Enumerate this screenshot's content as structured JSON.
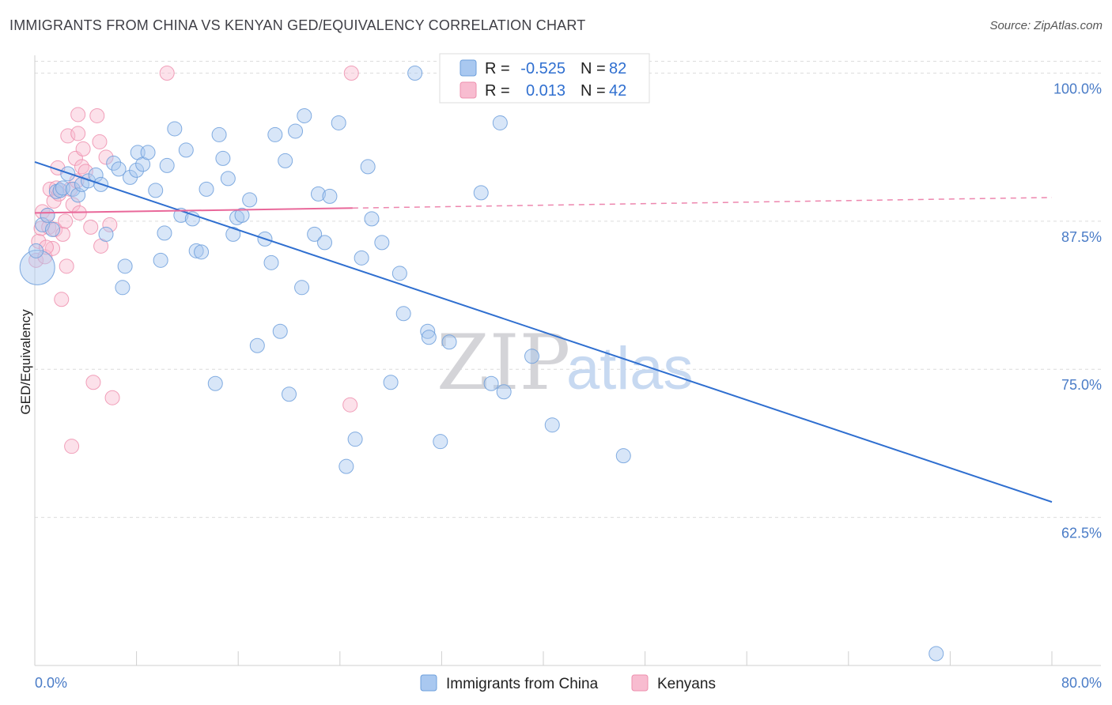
{
  "title": "IMMIGRANTS FROM CHINA VS KENYAN GED/EQUIVALENCY CORRELATION CHART",
  "source": "Source: ZipAtlas.com",
  "colors": {
    "series1_fill": "#a9c8f0",
    "series1_stroke": "#6d9fdc",
    "series1_line": "#2f6fd0",
    "series2_fill": "#f8bcd0",
    "series2_stroke": "#ee8fae",
    "series2_line": "#e9689a",
    "grid": "#dcdcdc",
    "tick_label": "#4a7cc7"
  },
  "legend": {
    "rows": [
      {
        "r_label": "R =",
        "r_value": "-0.525",
        "n_label": "N =",
        "n_value": "82"
      },
      {
        "r_label": "R =",
        "r_value": "0.013",
        "n_label": "N =",
        "n_value": "42"
      }
    ]
  },
  "watermark": {
    "part1": "ZIP",
    "part2": "atlas"
  },
  "chart_data": {
    "type": "scatter",
    "ylabel": "GED/Equivalency",
    "xlabel": "",
    "xlim": [
      0,
      80
    ],
    "ylim": [
      50,
      101.5
    ],
    "x_tick_labels": [
      "0.0%",
      "80.0%"
    ],
    "y_ticks": [
      62.5,
      75.0,
      87.5,
      100.0
    ],
    "y_tick_labels": [
      "62.5%",
      "75.0%",
      "87.5%",
      "100.0%"
    ],
    "grid": true,
    "legend_position": "top-center",
    "series": [
      {
        "name": "Immigrants from China",
        "trend": {
          "x": [
            0,
            80
          ],
          "y": [
            92.5,
            63.8
          ]
        },
        "points": [
          [
            0.2,
            83.6
          ],
          [
            0.6,
            87.2
          ],
          [
            1.0,
            88.0
          ],
          [
            1.4,
            86.8
          ],
          [
            1.7,
            90.0
          ],
          [
            2.0,
            90.1
          ],
          [
            2.2,
            90.3
          ],
          [
            2.6,
            91.5
          ],
          [
            3.0,
            90.2
          ],
          [
            3.4,
            89.7
          ],
          [
            3.7,
            90.6
          ],
          [
            4.2,
            90.9
          ],
          [
            4.8,
            91.4
          ],
          [
            5.2,
            90.6
          ],
          [
            5.6,
            86.4
          ],
          [
            6.2,
            92.4
          ],
          [
            6.6,
            91.9
          ],
          [
            6.9,
            81.9
          ],
          [
            7.1,
            83.7
          ],
          [
            7.5,
            91.2
          ],
          [
            8.0,
            91.8
          ],
          [
            8.1,
            93.3
          ],
          [
            8.5,
            92.3
          ],
          [
            8.9,
            93.3
          ],
          [
            9.5,
            90.1
          ],
          [
            9.9,
            84.2
          ],
          [
            10.2,
            86.5
          ],
          [
            10.4,
            92.2
          ],
          [
            11.0,
            95.3
          ],
          [
            11.5,
            88.0
          ],
          [
            11.9,
            93.5
          ],
          [
            12.4,
            87.7
          ],
          [
            12.7,
            85.0
          ],
          [
            13.1,
            84.9
          ],
          [
            13.5,
            90.2
          ],
          [
            14.2,
            73.8
          ],
          [
            14.5,
            94.8
          ],
          [
            14.8,
            92.8
          ],
          [
            15.2,
            91.1
          ],
          [
            15.6,
            86.4
          ],
          [
            15.9,
            87.8
          ],
          [
            16.3,
            88.0
          ],
          [
            16.9,
            89.3
          ],
          [
            17.5,
            77.0
          ],
          [
            18.1,
            86.0
          ],
          [
            18.6,
            84.0
          ],
          [
            18.9,
            94.8
          ],
          [
            19.3,
            78.2
          ],
          [
            19.7,
            92.6
          ],
          [
            20.0,
            72.9
          ],
          [
            20.5,
            95.1
          ],
          [
            21.0,
            81.9
          ],
          [
            21.2,
            96.4
          ],
          [
            22.0,
            86.4
          ],
          [
            22.3,
            89.8
          ],
          [
            22.8,
            85.7
          ],
          [
            23.2,
            89.6
          ],
          [
            23.9,
            95.8
          ],
          [
            24.5,
            66.8
          ],
          [
            25.2,
            69.1
          ],
          [
            25.7,
            84.4
          ],
          [
            26.2,
            92.1
          ],
          [
            26.5,
            87.7
          ],
          [
            27.3,
            85.7
          ],
          [
            28.0,
            73.9
          ],
          [
            28.7,
            83.1
          ],
          [
            29.0,
            79.7
          ],
          [
            29.9,
            100.0
          ],
          [
            30.9,
            78.2
          ],
          [
            31.0,
            77.7
          ],
          [
            31.9,
            68.9
          ],
          [
            32.6,
            77.3
          ],
          [
            33.3,
            100.0
          ],
          [
            35.1,
            89.9
          ],
          [
            35.9,
            73.8
          ],
          [
            36.6,
            95.8
          ],
          [
            36.9,
            73.1
          ],
          [
            39.1,
            76.1
          ],
          [
            40.7,
            70.3
          ],
          [
            46.3,
            67.7
          ],
          [
            70.9,
            51.0
          ],
          [
            0.1,
            85.0
          ]
        ]
      },
      {
        "name": "Kenyans",
        "trend": {
          "x": [
            0,
            80
          ],
          "y": [
            88.2,
            89.5
          ]
        },
        "dashed_from_x": 25,
        "points": [
          [
            0.1,
            84.2
          ],
          [
            0.3,
            85.8
          ],
          [
            0.5,
            86.9
          ],
          [
            0.6,
            88.3
          ],
          [
            0.8,
            84.5
          ],
          [
            1.0,
            88.0
          ],
          [
            1.1,
            87.0
          ],
          [
            1.2,
            90.2
          ],
          [
            1.4,
            85.2
          ],
          [
            1.5,
            89.2
          ],
          [
            1.6,
            86.8
          ],
          [
            1.7,
            90.3
          ],
          [
            1.8,
            92.0
          ],
          [
            2.1,
            80.9
          ],
          [
            2.2,
            86.4
          ],
          [
            2.4,
            87.5
          ],
          [
            2.5,
            83.7
          ],
          [
            2.6,
            94.7
          ],
          [
            2.8,
            90.2
          ],
          [
            2.9,
            68.5
          ],
          [
            3.0,
            88.9
          ],
          [
            3.2,
            92.8
          ],
          [
            3.4,
            94.9
          ],
          [
            3.5,
            88.2
          ],
          [
            3.7,
            92.1
          ],
          [
            3.8,
            93.6
          ],
          [
            4.0,
            91.7
          ],
          [
            4.4,
            87.0
          ],
          [
            4.6,
            73.9
          ],
          [
            4.9,
            96.4
          ],
          [
            5.1,
            94.2
          ],
          [
            5.2,
            85.4
          ],
          [
            5.6,
            92.9
          ],
          [
            5.9,
            87.2
          ],
          [
            6.1,
            72.6
          ],
          [
            10.4,
            100.0
          ],
          [
            24.8,
            72.0
          ],
          [
            24.9,
            100.0
          ],
          [
            3.4,
            96.5
          ],
          [
            0.9,
            85.3
          ],
          [
            1.9,
            89.8
          ],
          [
            3.3,
            90.9
          ]
        ]
      }
    ]
  },
  "bottom_legend": {
    "items": [
      {
        "label": "Immigrants from China"
      },
      {
        "label": "Kenyans"
      }
    ]
  }
}
